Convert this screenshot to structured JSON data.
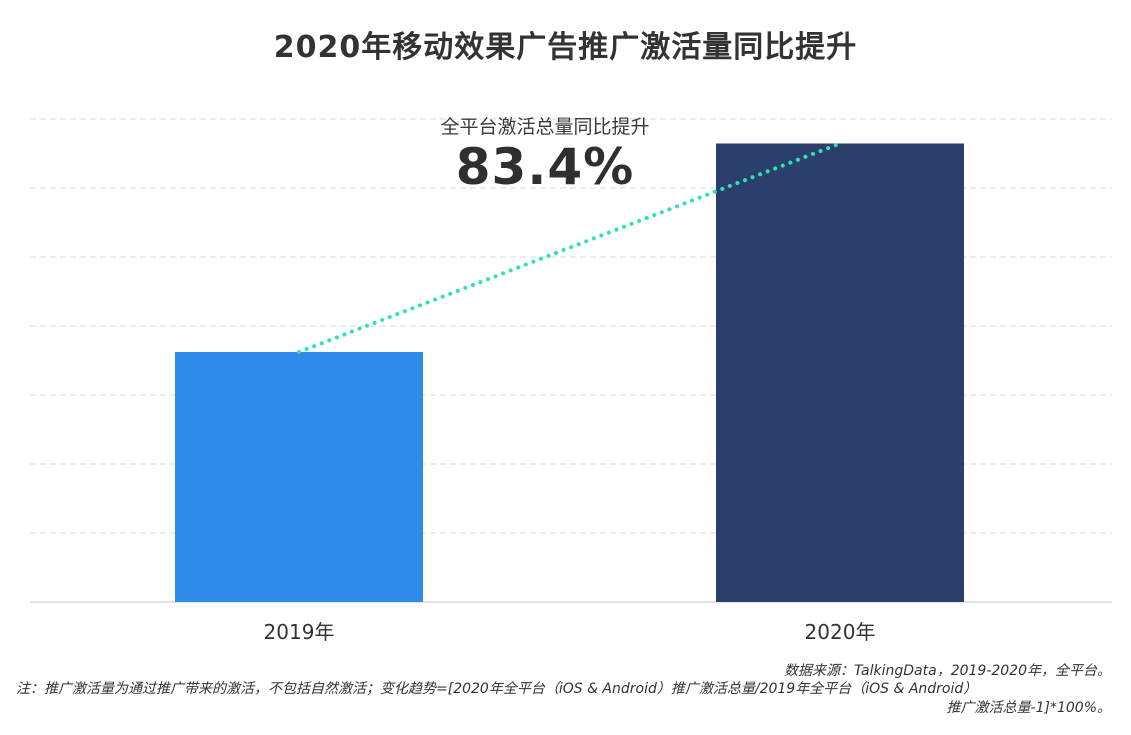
{
  "title": "2020年移动效果广告推广激活量同比提升",
  "callout": {
    "label": "全平台激活总量同比提升",
    "value": "83.4%"
  },
  "source": "数据来源：TalkingData，2019-2020年，全平台。",
  "note_line1": "注：推广激活量为通过推广带来的激活，不包括自然激活；变化趋势=[2020年全平台（iOS & Android）推广激活总量/2019年全平台（iOS & Android）",
  "note_line2": "推广激活总量-1]*100%。",
  "colors": {
    "bar_2019": "#2E8BEA",
    "bar_2020": "#2C3E6B",
    "trend": "#2FE3B0",
    "grid": "#D9D9D9"
  },
  "chart_data": {
    "type": "bar",
    "title": "2020年移动效果广告推广激活量同比提升",
    "categories": [
      "2019年",
      "2020年"
    ],
    "values": [
      1.0,
      1.834
    ],
    "ylim": [
      0,
      2.0
    ],
    "xlabel": "",
    "ylabel": "",
    "grid": true,
    "trend_line": "dotted",
    "annotation": "83.4%"
  }
}
